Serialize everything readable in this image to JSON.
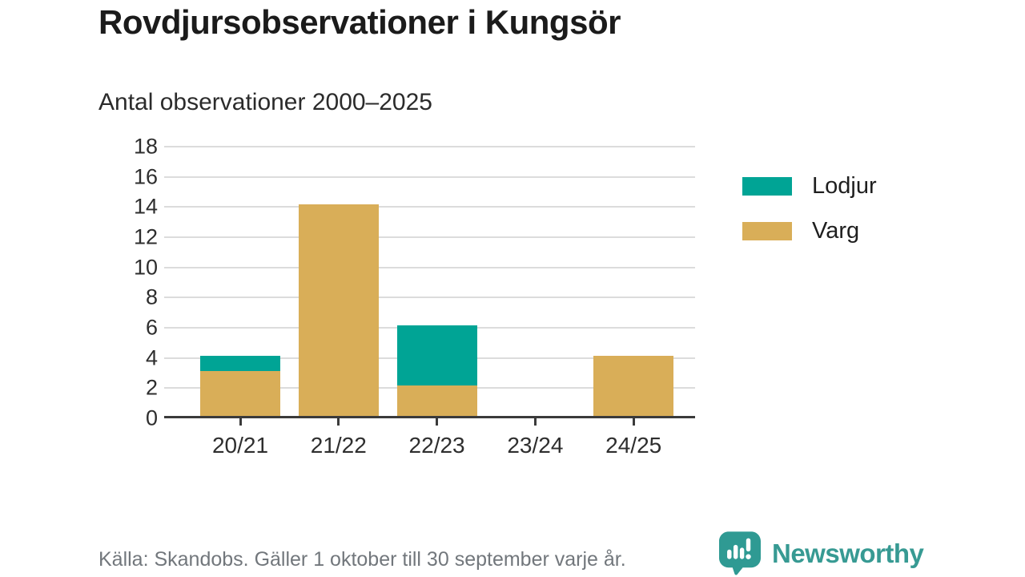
{
  "header": {
    "title": "Rovdjursobservationer i Kungsör",
    "subtitle": "Antal observationer 2000–2025"
  },
  "legend": [
    {
      "label": "Lodjur",
      "color": "#00A495"
    },
    {
      "label": "Varg",
      "color": "#D9AE58"
    }
  ],
  "footer": {
    "source": "Källa: Skandobs. Gäller 1 oktober till 30 september varje år.",
    "brand": "Newsworthy",
    "brand_color": "#379a93"
  },
  "chart_data": {
    "type": "bar",
    "stacked": true,
    "title": "Rovdjursobservationer i Kungsör",
    "subtitle": "Antal observationer 2000–2025",
    "categories": [
      "20/21",
      "21/22",
      "22/23",
      "23/24",
      "24/25"
    ],
    "series": [
      {
        "name": "Lodjur",
        "color": "#00A495",
        "values": [
          1,
          0,
          4,
          0,
          0
        ]
      },
      {
        "name": "Varg",
        "color": "#D9AE58",
        "values": [
          3,
          14,
          2,
          0,
          4
        ]
      }
    ],
    "stack_order_bottom_to_top": [
      "Varg",
      "Lodjur"
    ],
    "totals": [
      4,
      14,
      6,
      0,
      4
    ],
    "xlabel": "",
    "ylabel": "",
    "ylim": [
      0,
      18
    ],
    "yticks": [
      0,
      2,
      4,
      6,
      8,
      10,
      12,
      14,
      16,
      18
    ],
    "grid": true,
    "grid_color": "#dcdcdc",
    "axis_color": "#3b3b3b",
    "legend_position": "right"
  }
}
